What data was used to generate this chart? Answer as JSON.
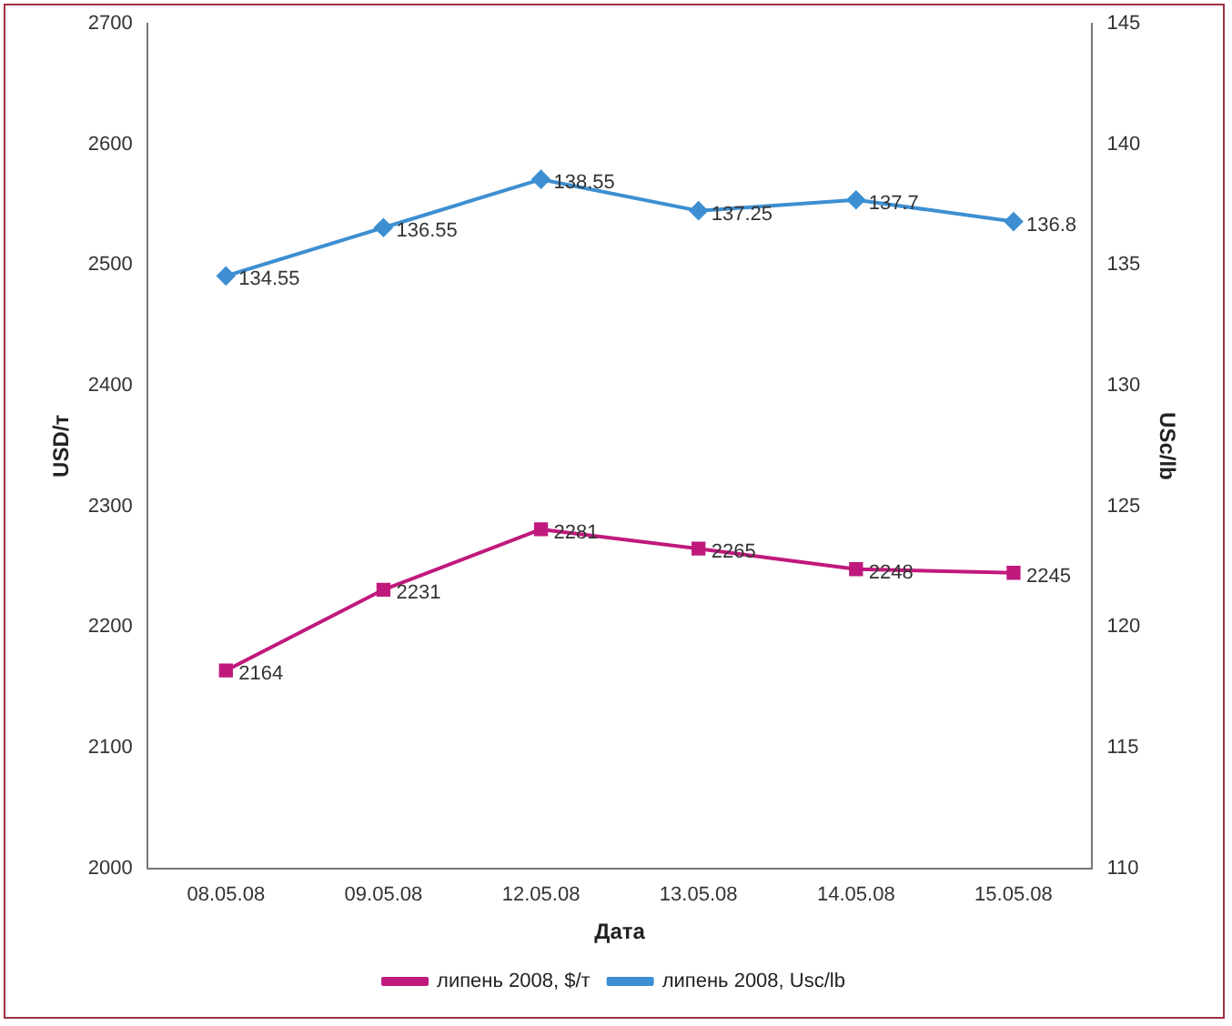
{
  "chart_data": {
    "type": "line",
    "xlabel": "Дата",
    "ylabel": "USD/т",
    "y2label": "USc/lb",
    "categories": [
      "08.05.08",
      "09.05.08",
      "12.05.08",
      "13.05.08",
      "14.05.08",
      "15.05.08"
    ],
    "series": [
      {
        "name": "липень 2008, $/т",
        "color": "#c0197d",
        "marker": "square",
        "values": [
          2164,
          2231,
          2281,
          2265,
          2248,
          2245
        ]
      },
      {
        "name": "липень 2008, Usc/lb",
        "color": "#3d8fd1",
        "marker": "diamond",
        "axis": "y2",
        "values": [
          134.55,
          136.55,
          138.55,
          137.25,
          137.7,
          136.8
        ]
      }
    ],
    "ylim": [
      2000,
      2700
    ],
    "yticks": [
      2000,
      2100,
      2200,
      2300,
      2400,
      2500,
      2600,
      2700
    ],
    "y2lim": [
      110,
      145
    ],
    "y2ticks": [
      110,
      115,
      120,
      125,
      130,
      135,
      140,
      145
    ],
    "data_labels": true,
    "legend": "bottom",
    "grid": false
  }
}
